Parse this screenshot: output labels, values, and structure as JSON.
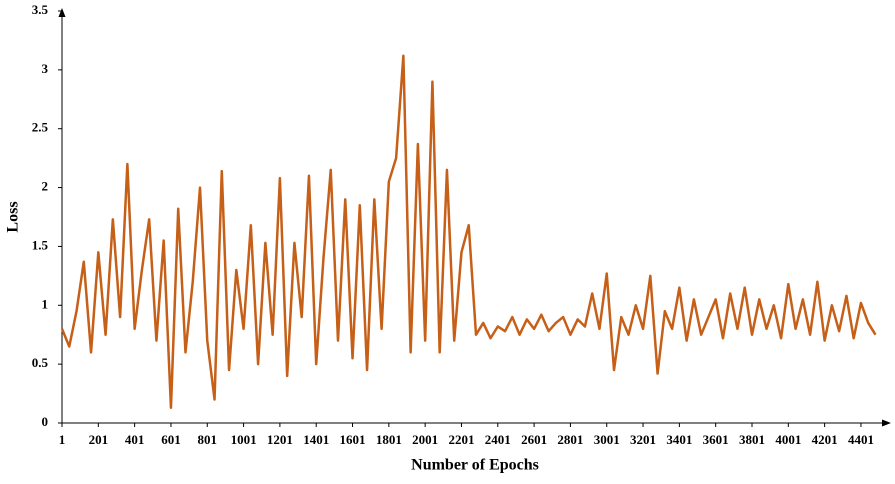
{
  "chart_data": {
    "type": "line",
    "ylabel": "Loss",
    "xlabel": "Number of Epochs",
    "color": "#c65f17",
    "xlim": [
      1,
      4550
    ],
    "ylim": [
      0,
      3.5
    ],
    "xticks": [
      1,
      201,
      401,
      601,
      801,
      1001,
      1201,
      1401,
      1601,
      1801,
      2001,
      2201,
      2401,
      2601,
      2801,
      3001,
      3201,
      3401,
      3601,
      3801,
      4001,
      4201,
      4401
    ],
    "yticks": [
      0,
      0.5,
      1,
      1.5,
      2,
      2.5,
      3,
      3.5
    ],
    "x": [
      1,
      41,
      81,
      121,
      161,
      201,
      241,
      281,
      321,
      361,
      401,
      441,
      481,
      521,
      561,
      601,
      641,
      681,
      721,
      761,
      801,
      841,
      881,
      921,
      961,
      1001,
      1041,
      1081,
      1121,
      1161,
      1201,
      1241,
      1281,
      1321,
      1361,
      1401,
      1441,
      1481,
      1521,
      1561,
      1601,
      1641,
      1681,
      1721,
      1761,
      1801,
      1841,
      1881,
      1921,
      1961,
      2001,
      2041,
      2081,
      2121,
      2161,
      2201,
      2241,
      2281,
      2321,
      2361,
      2401,
      2441,
      2481,
      2521,
      2561,
      2601,
      2641,
      2681,
      2721,
      2761,
      2801,
      2841,
      2881,
      2921,
      2961,
      3001,
      3041,
      3081,
      3121,
      3161,
      3201,
      3241,
      3281,
      3321,
      3361,
      3401,
      3441,
      3481,
      3521,
      3561,
      3601,
      3641,
      3681,
      3721,
      3761,
      3801,
      3841,
      3881,
      3921,
      3961,
      4001,
      4041,
      4081,
      4121,
      4161,
      4201,
      4241,
      4281,
      4321,
      4361,
      4401,
      4441,
      4481
    ],
    "values": [
      0.8,
      0.65,
      0.95,
      1.37,
      0.6,
      1.45,
      0.75,
      1.73,
      0.9,
      2.2,
      0.8,
      1.3,
      1.73,
      0.7,
      1.55,
      0.13,
      1.82,
      0.6,
      1.2,
      2.0,
      0.7,
      0.2,
      2.14,
      0.45,
      1.3,
      0.8,
      1.68,
      0.5,
      1.53,
      0.75,
      2.08,
      0.4,
      1.53,
      0.9,
      2.1,
      0.5,
      1.4,
      2.15,
      0.7,
      1.9,
      0.55,
      1.85,
      0.45,
      1.9,
      0.8,
      2.05,
      2.25,
      3.12,
      0.6,
      2.37,
      0.7,
      2.9,
      0.6,
      2.15,
      0.7,
      1.45,
      1.68,
      0.75,
      0.85,
      0.72,
      0.82,
      0.78,
      0.9,
      0.75,
      0.88,
      0.8,
      0.92,
      0.78,
      0.85,
      0.9,
      0.75,
      0.88,
      0.82,
      1.1,
      0.8,
      1.27,
      0.45,
      0.9,
      0.75,
      1.0,
      0.8,
      1.25,
      0.42,
      0.95,
      0.8,
      1.15,
      0.7,
      1.05,
      0.75,
      0.9,
      1.05,
      0.72,
      1.1,
      0.8,
      1.15,
      0.75,
      1.05,
      0.8,
      1.0,
      0.72,
      1.18,
      0.8,
      1.05,
      0.75,
      1.2,
      0.7,
      1.0,
      0.78,
      1.08,
      0.72,
      1.02,
      0.85,
      0.75
    ]
  }
}
